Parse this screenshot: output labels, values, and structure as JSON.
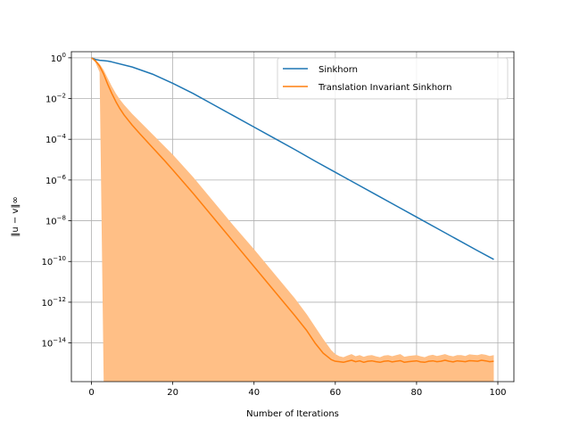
{
  "chart_data": {
    "type": "line",
    "title": "",
    "xlabel": "Number of Iterations",
    "ylabel": "‖u − v‖∞",
    "xlim": [
      -4.95,
      103.95
    ],
    "ylim_log10": [
      -15.9,
      0.3
    ],
    "y_scale": "log",
    "grid": true,
    "legend_position": "top-right",
    "x_ticks": [
      {
        "value": 0,
        "label": "0"
      },
      {
        "value": 20,
        "label": "20"
      },
      {
        "value": 40,
        "label": "40"
      },
      {
        "value": 60,
        "label": "60"
      },
      {
        "value": 80,
        "label": "80"
      },
      {
        "value": 100,
        "label": "100"
      }
    ],
    "y_ticks": [
      {
        "exp": 0,
        "base": "10",
        "sup": "0"
      },
      {
        "exp": -2,
        "base": "10",
        "sup": "−2"
      },
      {
        "exp": -4,
        "base": "10",
        "sup": "−4"
      },
      {
        "exp": -6,
        "base": "10",
        "sup": "−6"
      },
      {
        "exp": -8,
        "base": "10",
        "sup": "−8"
      },
      {
        "exp": -10,
        "base": "10",
        "sup": "−10"
      },
      {
        "exp": -12,
        "base": "10",
        "sup": "−12"
      },
      {
        "exp": -14,
        "base": "10",
        "sup": "−14"
      }
    ],
    "series": [
      {
        "name": "Sinkhorn",
        "color": "#1f77b4",
        "x": [
          0,
          1,
          2,
          3,
          4,
          5,
          10,
          15,
          20,
          25,
          30,
          35,
          40,
          45,
          50,
          55,
          60,
          65,
          70,
          75,
          80,
          85,
          90,
          95,
          99
        ],
        "y_log10": [
          0,
          -0.08,
          -0.12,
          -0.14,
          -0.16,
          -0.2,
          -0.45,
          -0.8,
          -1.25,
          -1.75,
          -2.3,
          -2.85,
          -3.4,
          -3.95,
          -4.5,
          -5.07,
          -5.62,
          -6.17,
          -6.72,
          -7.27,
          -7.82,
          -8.37,
          -8.92,
          -9.47,
          -9.9
        ]
      },
      {
        "name": "Translation Invariant Sinkhorn",
        "color": "#ff7f0e",
        "fill_color": "#ffbf86",
        "x": [
          0,
          1,
          2,
          3,
          4,
          5,
          6,
          7,
          8,
          10,
          12,
          15,
          18,
          20,
          25,
          30,
          35,
          40,
          45,
          50,
          53,
          55,
          57,
          59,
          60,
          61,
          62,
          63,
          64,
          65,
          66,
          67,
          68,
          69,
          70,
          71,
          72,
          73,
          74,
          75,
          76,
          77,
          78,
          79,
          80,
          81,
          82,
          83,
          84,
          85,
          86,
          87,
          88,
          89,
          90,
          91,
          92,
          93,
          94,
          95,
          96,
          97,
          98,
          99
        ],
        "y_log10": [
          0,
          -0.15,
          -0.4,
          -0.8,
          -1.3,
          -1.75,
          -2.15,
          -2.5,
          -2.8,
          -3.3,
          -3.75,
          -4.4,
          -5.05,
          -5.5,
          -6.65,
          -7.85,
          -9.05,
          -10.25,
          -11.45,
          -12.65,
          -13.4,
          -14.0,
          -14.5,
          -14.82,
          -14.9,
          -14.92,
          -14.95,
          -14.9,
          -14.85,
          -14.92,
          -14.88,
          -14.95,
          -14.9,
          -14.88,
          -14.92,
          -14.95,
          -14.9,
          -14.88,
          -14.93,
          -14.9,
          -14.87,
          -14.95,
          -14.92,
          -14.9,
          -14.88,
          -14.93,
          -14.95,
          -14.9,
          -14.88,
          -14.92,
          -14.9,
          -14.85,
          -14.9,
          -14.93,
          -14.88,
          -14.9,
          -14.92,
          -14.87,
          -14.88,
          -14.9,
          -14.85,
          -14.88,
          -14.92,
          -14.9
        ],
        "upper_log10": [
          0,
          -0.1,
          -0.3,
          -0.6,
          -1.0,
          -1.4,
          -1.75,
          -2.05,
          -2.3,
          -2.75,
          -3.15,
          -3.75,
          -4.35,
          -4.75,
          -5.85,
          -7.05,
          -8.25,
          -9.4,
          -10.6,
          -11.8,
          -12.6,
          -13.2,
          -13.8,
          -14.35,
          -14.55,
          -14.65,
          -14.7,
          -14.62,
          -14.55,
          -14.65,
          -14.6,
          -14.68,
          -14.62,
          -14.6,
          -14.66,
          -14.7,
          -14.62,
          -14.6,
          -14.65,
          -14.6,
          -14.55,
          -14.68,
          -14.64,
          -14.62,
          -14.6,
          -14.66,
          -14.7,
          -14.62,
          -14.58,
          -14.64,
          -14.6,
          -14.55,
          -14.62,
          -14.66,
          -14.6,
          -14.6,
          -14.64,
          -14.56,
          -14.58,
          -14.6,
          -14.55,
          -14.58,
          -14.64,
          -14.6
        ],
        "lower_log10": [
          0,
          -0.25,
          -0.7,
          -15.9,
          -15.9,
          -15.9,
          -15.9,
          -15.9,
          -15.9,
          -15.9,
          -15.9,
          -15.9,
          -15.9,
          -15.9,
          -15.9,
          -15.9,
          -15.9,
          -15.9,
          -15.9,
          -15.9,
          -15.9,
          -15.9,
          -15.9,
          -15.9,
          -15.9,
          -15.9,
          -15.9,
          -15.9,
          -15.9,
          -15.9,
          -15.9,
          -15.9,
          -15.9,
          -15.9,
          -15.9,
          -15.9,
          -15.9,
          -15.9,
          -15.9,
          -15.9,
          -15.9,
          -15.9,
          -15.9,
          -15.9,
          -15.9,
          -15.9,
          -15.9,
          -15.9,
          -15.9,
          -15.9,
          -15.9,
          -15.9,
          -15.9,
          -15.9,
          -15.9,
          -15.9,
          -15.9,
          -15.9,
          -15.9,
          -15.9,
          -15.9,
          -15.9,
          -15.9,
          -15.9
        ]
      }
    ]
  }
}
